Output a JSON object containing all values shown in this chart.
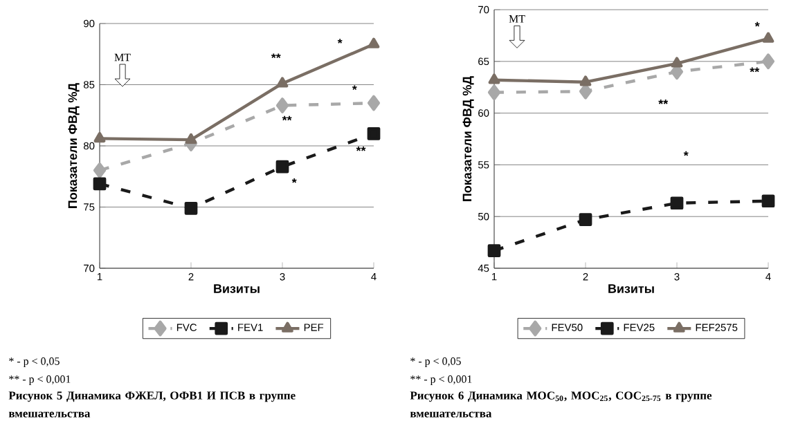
{
  "chart_data": [
    {
      "type": "line",
      "title": "Рисунок 5 Динамика ФЖЕЛ, ОФВ1 И ПСВ в группе вмешательства",
      "xlabel": "Визиты",
      "ylabel": "Показатели ФВД %Д",
      "x": [
        1,
        2,
        3,
        4
      ],
      "xlim": [
        1,
        4
      ],
      "xticks": [
        1,
        2,
        3,
        4
      ],
      "ylim": [
        70,
        90
      ],
      "yticks": [
        70,
        75,
        80,
        85,
        90
      ],
      "grid": "y",
      "legend": "bottom",
      "series": [
        {
          "name": "FVC",
          "color": "#a8a8a8",
          "marker": "diamond",
          "line_style": "dashed",
          "values": [
            78.0,
            80.2,
            83.3,
            83.5
          ]
        },
        {
          "name": "FEV1",
          "color": "#1a1a1a",
          "marker": "square",
          "line_style": "dashed",
          "values": [
            76.9,
            74.9,
            78.3,
            81.0
          ]
        },
        {
          "name": "PEF",
          "color": "#7a6e64",
          "marker": "triangle",
          "line_style": "solid",
          "values": [
            80.6,
            80.5,
            85.1,
            88.3
          ]
        }
      ],
      "annotations": [
        "MT",
        "**",
        "*",
        "**",
        "*",
        "*",
        "**",
        "* - p < 0,05",
        "** - p < 0,001"
      ]
    },
    {
      "type": "line",
      "title": "Рисунок 6 Динамика МОС$_{50}$, МОС$_{25}$, СОС$_{25-75}$ в группе вмешательства",
      "xlabel": "Визиты",
      "ylabel": "Показатели ФВД %Д",
      "x": [
        1,
        2,
        3,
        4
      ],
      "xlim": [
        1,
        4
      ],
      "xticks": [
        1,
        2,
        3,
        4
      ],
      "ylim": [
        45,
        70
      ],
      "yticks": [
        45,
        50,
        55,
        60,
        65,
        70
      ],
      "grid": "y",
      "legend": "bottom",
      "series": [
        {
          "name": "FEV50",
          "color": "#a8a8a8",
          "marker": "diamond",
          "line_style": "dashed",
          "values": [
            62.0,
            62.1,
            64.0,
            65.0
          ]
        },
        {
          "name": "FEV25",
          "color": "#1a1a1a",
          "marker": "square",
          "line_style": "dashed",
          "values": [
            46.7,
            49.7,
            51.3,
            51.5
          ]
        },
        {
          "name": "FEF2575",
          "color": "#7a6e64",
          "marker": "triangle",
          "line_style": "solid",
          "values": [
            63.2,
            63.0,
            64.8,
            67.2
          ]
        }
      ],
      "annotations": [
        "MT",
        "*",
        "**",
        "*",
        "**",
        "* - p < 0,05",
        "** - p < 0,001"
      ]
    }
  ]
}
